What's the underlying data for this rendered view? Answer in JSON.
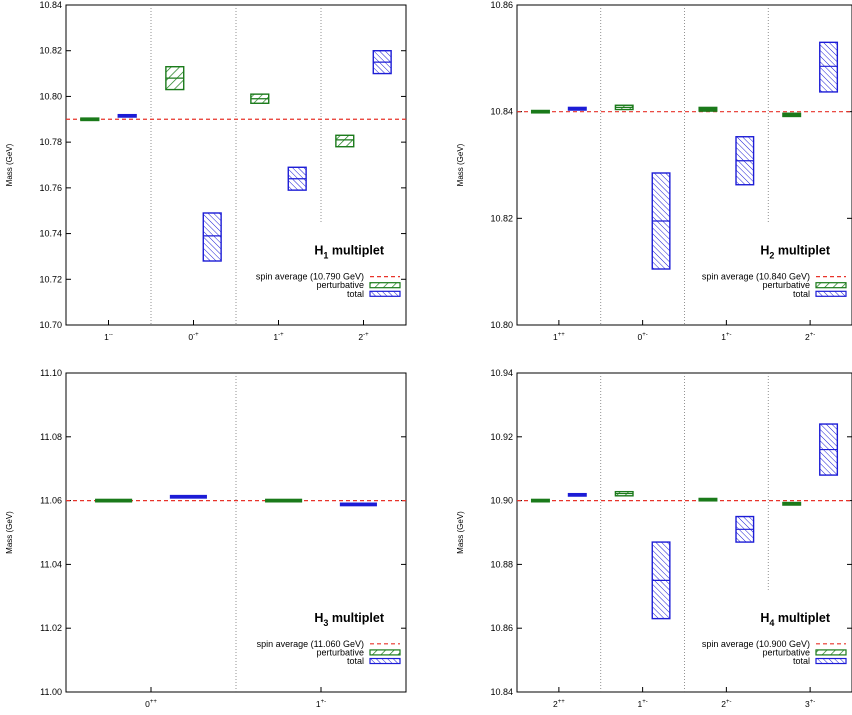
{
  "colors": {
    "perturbative": "#1a7a1a",
    "total": "#1c1cd6",
    "spin_average": "#e8332a",
    "separator": "#777777"
  },
  "chart_data": [
    {
      "type": "bar",
      "ylabel": "Mass (GeV)",
      "title": "H",
      "title_sub": "1",
      "title_suffix": " multiplet",
      "ylim": [
        10.7,
        10.84
      ],
      "yticks": [
        10.7,
        10.72,
        10.74,
        10.76,
        10.78,
        10.8,
        10.82,
        10.84
      ],
      "ytick_labels": [
        "10.70",
        "10.72",
        "10.74",
        "10.76",
        "10.78",
        "10.80",
        "10.82",
        "10.84"
      ],
      "categories": [
        {
          "base": "1",
          "sup": "--"
        },
        {
          "base": "0",
          "sup": "-+"
        },
        {
          "base": "1",
          "sup": "-+"
        },
        {
          "base": "2",
          "sup": "-+"
        }
      ],
      "spin_average": 10.79,
      "series": [
        {
          "name": "perturbative",
          "values": [
            {
              "center": 10.79,
              "low": 10.7898,
              "high": 10.7902
            },
            {
              "center": 10.808,
              "low": 10.803,
              "high": 10.813
            },
            {
              "center": 10.799,
              "low": 10.797,
              "high": 10.801
            },
            {
              "center": 10.781,
              "low": 10.778,
              "high": 10.783
            }
          ]
        },
        {
          "name": "total",
          "values": [
            {
              "center": 10.7915,
              "low": 10.791,
              "high": 10.792
            },
            {
              "center": 10.739,
              "low": 10.728,
              "high": 10.749
            },
            {
              "center": 10.764,
              "low": 10.759,
              "high": 10.769
            },
            {
              "center": 10.815,
              "low": 10.81,
              "high": 10.82
            }
          ]
        }
      ],
      "legend": {
        "spin_average": "spin average (10.790 GeV)",
        "perturbative": "perturbative",
        "total": "total",
        "position": "bottom-right"
      }
    },
    {
      "type": "bar",
      "ylabel": "Mass (GeV)",
      "title": "H",
      "title_sub": "2",
      "title_suffix": " multiplet",
      "ylim": [
        10.8,
        10.86
      ],
      "yticks": [
        10.8,
        10.82,
        10.84,
        10.86
      ],
      "ytick_labels": [
        "10.80",
        "10.82",
        "10.84",
        "10.86"
      ],
      "categories": [
        {
          "base": "1",
          "sup": "++"
        },
        {
          "base": "0",
          "sup": "+-"
        },
        {
          "base": "1",
          "sup": "+-"
        },
        {
          "base": "2",
          "sup": "+-"
        }
      ],
      "spin_average": 10.84,
      "series": [
        {
          "name": "perturbative",
          "values": [
            {
              "center": 10.84,
              "low": 10.8399,
              "high": 10.8401
            },
            {
              "center": 10.8408,
              "low": 10.8404,
              "high": 10.8412
            },
            {
              "center": 10.8405,
              "low": 10.8401,
              "high": 10.8408
            },
            {
              "center": 10.8394,
              "low": 10.8391,
              "high": 10.8397
            }
          ]
        },
        {
          "name": "total",
          "values": [
            {
              "center": 10.8405,
              "low": 10.8403,
              "high": 10.8408
            },
            {
              "center": 10.8195,
              "low": 10.8105,
              "high": 10.8285
            },
            {
              "center": 10.8308,
              "low": 10.8263,
              "high": 10.8353
            },
            {
              "center": 10.8485,
              "low": 10.8437,
              "high": 10.853
            }
          ]
        }
      ],
      "legend": {
        "spin_average": "spin average (10.840 GeV)",
        "perturbative": "perturbative",
        "total": "total",
        "position": "bottom-right"
      }
    },
    {
      "type": "bar",
      "ylabel": "Mass (GeV)",
      "title": "H",
      "title_sub": "3",
      "title_suffix": " multiplet",
      "ylim": [
        11.0,
        11.1
      ],
      "yticks": [
        11.0,
        11.02,
        11.04,
        11.06,
        11.08,
        11.1
      ],
      "ytick_labels": [
        "11.00",
        "11.02",
        "11.04",
        "11.06",
        "11.08",
        "11.10"
      ],
      "categories": [
        {
          "base": "0",
          "sup": "++"
        },
        {
          "base": "1",
          "sup": "+-"
        }
      ],
      "spin_average": 11.06,
      "series": [
        {
          "name": "perturbative",
          "values": [
            {
              "center": 11.06,
              "low": 11.0599,
              "high": 11.0601
            },
            {
              "center": 11.06,
              "low": 11.0599,
              "high": 11.0601
            }
          ]
        },
        {
          "name": "total",
          "values": [
            {
              "center": 11.0612,
              "low": 11.061,
              "high": 11.0614
            },
            {
              "center": 11.0588,
              "low": 11.0586,
              "high": 11.059
            }
          ]
        }
      ],
      "legend": {
        "spin_average": "spin average (11.060 GeV)",
        "perturbative": "perturbative",
        "total": "total",
        "position": "bottom-right"
      }
    },
    {
      "type": "bar",
      "ylabel": "Mass (GeV)",
      "title": "H",
      "title_sub": "4",
      "title_suffix": " multiplet",
      "ylim": [
        10.84,
        10.94
      ],
      "yticks": [
        10.84,
        10.86,
        10.88,
        10.9,
        10.92,
        10.94
      ],
      "ytick_labels": [
        "10.84",
        "10.86",
        "10.88",
        "10.90",
        "10.92",
        "10.94"
      ],
      "categories": [
        {
          "base": "2",
          "sup": "++"
        },
        {
          "base": "1",
          "sup": "+-"
        },
        {
          "base": "2",
          "sup": "+-"
        },
        {
          "base": "3",
          "sup": "+-"
        }
      ],
      "spin_average": 10.9,
      "series": [
        {
          "name": "perturbative",
          "values": [
            {
              "center": 10.9,
              "low": 10.8999,
              "high": 10.9001
            },
            {
              "center": 10.9022,
              "low": 10.9015,
              "high": 10.9028
            },
            {
              "center": 10.9003,
              "low": 10.9001,
              "high": 10.9005
            },
            {
              "center": 10.899,
              "low": 10.8986,
              "high": 10.8994
            }
          ]
        },
        {
          "name": "total",
          "values": [
            {
              "center": 10.9018,
              "low": 10.9015,
              "high": 10.9021
            },
            {
              "center": 10.875,
              "low": 10.863,
              "high": 10.887
            },
            {
              "center": 10.891,
              "low": 10.887,
              "high": 10.895
            },
            {
              "center": 10.916,
              "low": 10.908,
              "high": 10.924
            }
          ]
        }
      ],
      "legend": {
        "spin_average": "spin average (10.900 GeV)",
        "perturbative": "perturbative",
        "total": "total",
        "position": "bottom-right"
      }
    }
  ]
}
